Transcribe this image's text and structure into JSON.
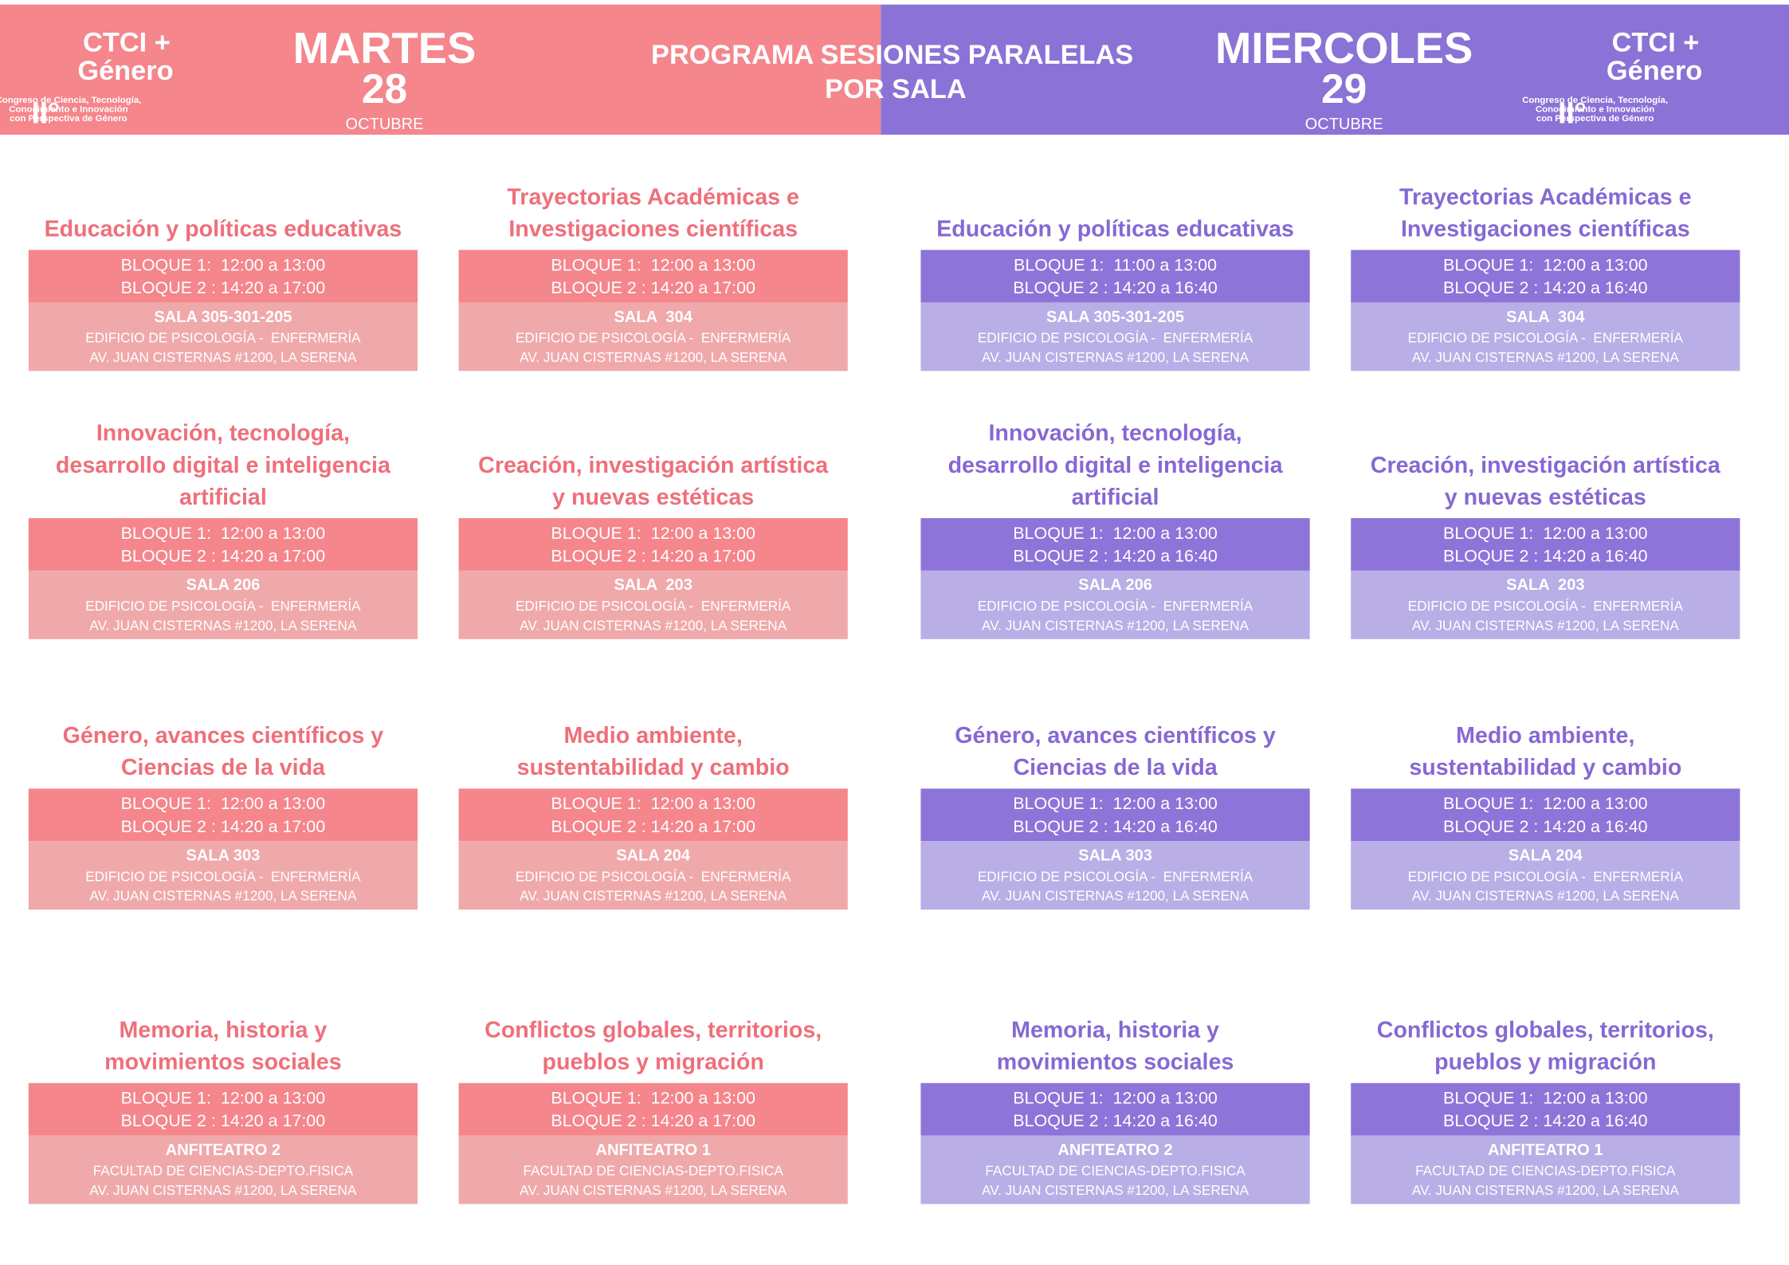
{
  "header": {
    "title_lines": [
      "PROGRAMA SESIONES PARALELAS",
      "POR SALA"
    ],
    "logo": {
      "name_lines": [
        "CTCI +",
        "Género"
      ],
      "edition": "II°",
      "caption_lines": [
        "Congreso de Ciencia, Tecnología,",
        "Conocimiento e Innovación",
        "con Perspectiva de Género"
      ]
    },
    "days": [
      {
        "weekday": "MARTES",
        "day": "28",
        "month": "OCTUBRE"
      },
      {
        "weekday": "MIERCOLES",
        "day": "29",
        "month": "OCTUBRE"
      }
    ]
  },
  "sessions": [
    {
      "cards": [
        {
          "title": [
            "Educación y políticas educativas"
          ],
          "bloque1": "BLOQUE 1:  12:00 a 13:00",
          "bloque2": "BLOQUE 2 : 14:20 a 17:00",
          "sala": "SALA 305-301-205",
          "building": "EDIFICIO DE PSICOLOGÍA -  ENFERMERÍA",
          "address": "AV. JUAN CISTERNAS #1200, LA SERENA"
        },
        {
          "title": [
            "Trayectorias Académicas e",
            "Investigaciones científicas"
          ],
          "bloque1": "BLOQUE 1:  12:00 a 13:00",
          "bloque2": "BLOQUE 2 : 14:20 a 17:00",
          "sala": "SALA  304",
          "building": "EDIFICIO DE PSICOLOGÍA -  ENFERMERÍA",
          "address": "AV. JUAN CISTERNAS #1200, LA SERENA"
        },
        {
          "title": [
            "Innovación, tecnología,",
            "desarrollo digital e inteligencia",
            "artificial"
          ],
          "bloque1": "BLOQUE 1:  12:00 a 13:00",
          "bloque2": "BLOQUE 2 : 14:20 a 17:00",
          "sala": "SALA 206",
          "building": "EDIFICIO DE PSICOLOGÍA -  ENFERMERÍA",
          "address": "AV. JUAN CISTERNAS #1200, LA SERENA"
        },
        {
          "title": [
            "Creación, investigación artística",
            "y nuevas estéticas"
          ],
          "bloque1": "BLOQUE 1:  12:00 a 13:00",
          "bloque2": "BLOQUE 2 : 14:20 a 17:00",
          "sala": "SALA  203",
          "building": "EDIFICIO DE PSICOLOGÍA -  ENFERMERÍA",
          "address": "AV. JUAN CISTERNAS #1200, LA SERENA"
        },
        {
          "title": [
            "Género, avances científicos y",
            "Ciencias de la vida"
          ],
          "bloque1": "BLOQUE 1:  12:00 a 13:00",
          "bloque2": "BLOQUE 2 : 14:20 a 17:00",
          "sala": "SALA 303",
          "building": "EDIFICIO DE PSICOLOGÍA -  ENFERMERÍA",
          "address": "AV. JUAN CISTERNAS #1200, LA SERENA"
        },
        {
          "title": [
            "Medio ambiente,",
            "sustentabilidad y cambio"
          ],
          "bloque1": "BLOQUE 1:  12:00 a 13:00",
          "bloque2": "BLOQUE 2 : 14:20 a 17:00",
          "sala": "SALA 204",
          "building": "EDIFICIO DE PSICOLOGÍA -  ENFERMERÍA",
          "address": "AV. JUAN CISTERNAS #1200, LA SERENA"
        },
        {
          "title": [
            "Memoria, historia y",
            "movimientos sociales"
          ],
          "bloque1": "BLOQUE 1:  12:00 a 13:00",
          "bloque2": "BLOQUE 2 : 14:20 a 17:00",
          "sala": "ANFITEATRO 2",
          "building": "FACULTAD DE CIENCIAS-DEPTO.FISICA",
          "address": "AV. JUAN CISTERNAS #1200, LA SERENA"
        },
        {
          "title": [
            "Conflictos globales, territorios,",
            "pueblos y migración"
          ],
          "bloque1": "BLOQUE 1:  12:00 a 13:00",
          "bloque2": "BLOQUE 2 : 14:20 a 17:00",
          "sala": "ANFITEATRO 1",
          "building": "FACULTAD DE CIENCIAS-DEPTO.FISICA",
          "address": "AV. JUAN CISTERNAS #1200, LA SERENA"
        }
      ]
    },
    {
      "cards": [
        {
          "title": [
            "Educación y políticas educativas"
          ],
          "bloque1": "BLOQUE 1:  11:00 a 13:00",
          "bloque2": "BLOQUE 2 : 14:20 a 16:40",
          "sala": "SALA 305-301-205",
          "building": "EDIFICIO DE PSICOLOGÍA -  ENFERMERÍA",
          "address": "AV. JUAN CISTERNAS #1200, LA SERENA"
        },
        {
          "title": [
            "Trayectorias Académicas e",
            "Investigaciones científicas"
          ],
          "bloque1": "BLOQUE 1:  12:00 a 13:00",
          "bloque2": "BLOQUE 2 : 14:20 a 16:40",
          "sala": "SALA  304",
          "building": "EDIFICIO DE PSICOLOGÍA -  ENFERMERÍA",
          "address": "AV. JUAN CISTERNAS #1200, LA SERENA"
        },
        {
          "title": [
            "Innovación, tecnología,",
            "desarrollo digital e inteligencia",
            "artificial"
          ],
          "bloque1": "BLOQUE 1:  12:00 a 13:00",
          "bloque2": "BLOQUE 2 : 14:20 a 16:40",
          "sala": "SALA 206",
          "building": "EDIFICIO DE PSICOLOGÍA -  ENFERMERÍA",
          "address": "AV. JUAN CISTERNAS #1200, LA SERENA"
        },
        {
          "title": [
            "Creación, investigación artística",
            "y nuevas estéticas"
          ],
          "bloque1": "BLOQUE 1:  12:00 a 13:00",
          "bloque2": "BLOQUE 2 : 14:20 a 16:40",
          "sala": "SALA  203",
          "building": "EDIFICIO DE PSICOLOGÍA -  ENFERMERÍA",
          "address": "AV. JUAN CISTERNAS #1200, LA SERENA"
        },
        {
          "title": [
            "Género, avances científicos y",
            "Ciencias de la vida"
          ],
          "bloque1": "BLOQUE 1:  12:00 a 13:00",
          "bloque2": "BLOQUE 2 : 14:20 a 16:40",
          "sala": "SALA 303",
          "building": "EDIFICIO DE PSICOLOGÍA -  ENFERMERÍA",
          "address": "AV. JUAN CISTERNAS #1200, LA SERENA"
        },
        {
          "title": [
            "Medio ambiente,",
            "sustentabilidad y cambio"
          ],
          "bloque1": "BLOQUE 1:  12:00 a 13:00",
          "bloque2": "BLOQUE 2 : 14:20 a 16:40",
          "sala": "SALA 204",
          "building": "EDIFICIO DE PSICOLOGÍA -  ENFERMERÍA",
          "address": "AV. JUAN CISTERNAS #1200, LA SERENA"
        },
        {
          "title": [
            "Memoria, historia y",
            "movimientos sociales"
          ],
          "bloque1": "BLOQUE 1:  12:00 a 13:00",
          "bloque2": "BLOQUE 2 : 14:20 a 16:40",
          "sala": "ANFITEATRO 2",
          "building": "FACULTAD DE CIENCIAS-DEPTO.FISICA",
          "address": "AV. JUAN CISTERNAS #1200, LA SERENA"
        },
        {
          "title": [
            "Conflictos globales, territorios,",
            "pueblos y migración"
          ],
          "bloque1": "BLOQUE 1:  12:00 a 13:00",
          "bloque2": "BLOQUE 2 : 14:20 a 16:40",
          "sala": "ANFITEATRO 1",
          "building": "FACULTAD DE CIENCIAS-DEPTO.FISICA",
          "address": "AV. JUAN CISTERNAS #1200, LA SERENA"
        }
      ]
    }
  ]
}
